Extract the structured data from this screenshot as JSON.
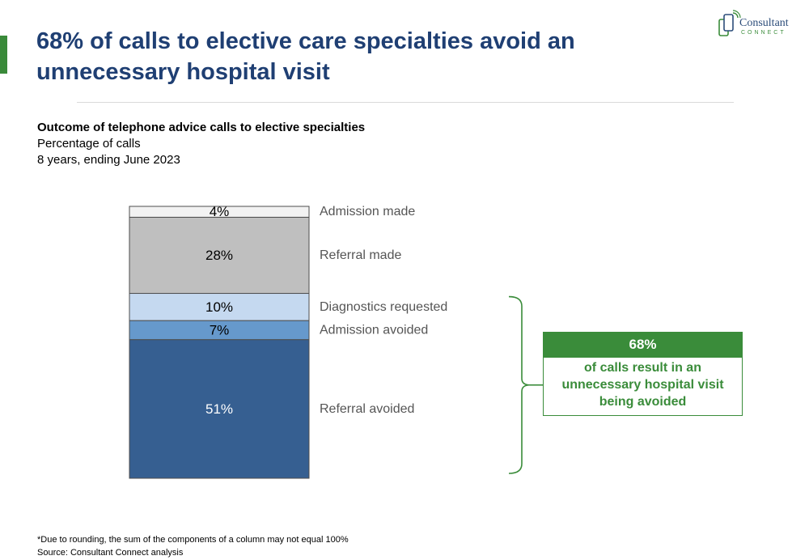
{
  "title": "68% of calls to elective care specialties avoid an unnecessary hospital visit",
  "logo": {
    "name": "Consultant",
    "sub": "CONNECT"
  },
  "colors": {
    "accent": "#3a8c3a",
    "title": "#1f3f73",
    "admission_made": "#f2f2f2",
    "referral_made": "#bfbfbf",
    "diagnostics_requested": "#c5d9f0",
    "admission_avoided": "#6699cc",
    "referral_avoided": "#365f91"
  },
  "chart_data": {
    "type": "bar",
    "title": "Outcome of telephone advice calls to elective specialties",
    "subtitle": "Percentage of calls",
    "subtitle2": "8 years, ending June 2023",
    "categories": [
      ""
    ],
    "unit": "%",
    "series": [
      {
        "name": "Referral avoided",
        "values": [
          51
        ],
        "label": "51%",
        "color": "#365f91",
        "text_color": "#ffffff"
      },
      {
        "name": "Admission avoided",
        "values": [
          7
        ],
        "label": "7%",
        "color": "#6699cc",
        "text_color": "#000000"
      },
      {
        "name": "Diagnostics requested",
        "values": [
          10
        ],
        "label": "10%",
        "color": "#c5d9f0",
        "text_color": "#000000"
      },
      {
        "name": "Referral made",
        "values": [
          28
        ],
        "label": "28%",
        "color": "#bfbfbf",
        "text_color": "#000000"
      },
      {
        "name": "Admission made",
        "values": [
          4
        ],
        "label": "4%",
        "color": "#f2f2f2",
        "text_color": "#000000"
      }
    ],
    "stacked": true,
    "ylim": [
      0,
      100
    ],
    "grid": false,
    "legend": "right, beside each segment",
    "annotation": {
      "value": "68%",
      "text": "of calls result in an unnecessary hospital visit being avoided",
      "bracket_series": [
        "Diagnostics requested",
        "Admission avoided",
        "Referral avoided"
      ]
    }
  },
  "footnote": "*Due to rounding, the sum of the components of a column may not equal 100%",
  "source": "Source: Consultant Connect analysis"
}
